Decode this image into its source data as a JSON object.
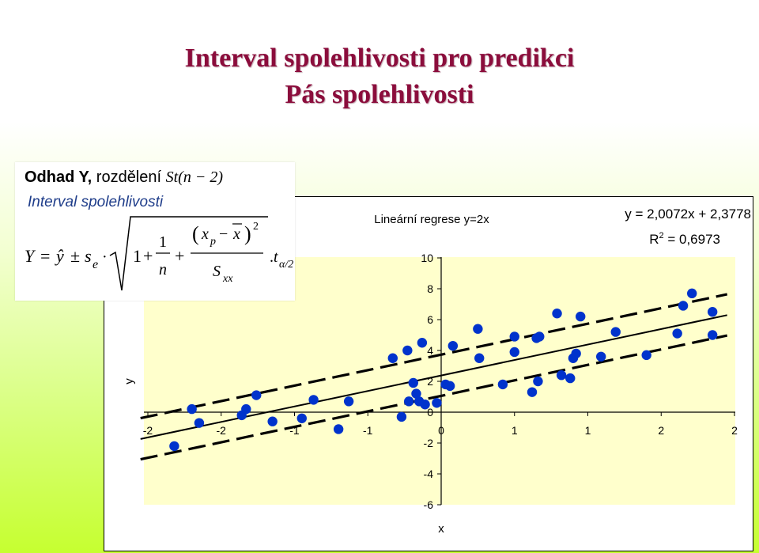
{
  "slide": {
    "title_line1": "Interval spolehlivosti pro predikci",
    "title_line2": "Pás spolehlivosti"
  },
  "formula_box": {
    "heading_bold": "Odhad Y,",
    "heading_rest": "rozdělení",
    "distribution": "St(n − 2)",
    "subheading": "Interval spolehlivosti",
    "formula": "Y = ŷ ± s_e · √(1 + 1/n + (x_p − x̄)² / S_xx) · t_α/2"
  },
  "chart_data": {
    "type": "scatter",
    "title": "Lineární regrese y=2x",
    "xlabel": "x",
    "ylabel": "y",
    "equation": "y = 2,0072x + 2,3778",
    "r2_label": "R",
    "r2_sup": "2",
    "r2_value": " = 0,6973",
    "xlim": [
      -2,
      2
    ],
    "ylim": [
      -6,
      10
    ],
    "x_tick_labels": [
      "-2",
      "-2",
      "-1",
      "-1",
      "0",
      "1",
      "1",
      "2",
      "2"
    ],
    "x_tick_values": [
      -2,
      -1.5,
      -1,
      -0.5,
      0,
      0.5,
      1,
      1.5,
      2
    ],
    "y_ticks": [
      -6,
      -4,
      -2,
      0,
      2,
      4,
      6,
      8,
      10
    ],
    "grid": false,
    "colors": {
      "plot_bg": "#ffffcc",
      "points": "#0033cc",
      "lines": "#000000"
    },
    "regression": {
      "slope": 2.0072,
      "intercept": 2.3778
    },
    "band": {
      "half_width_low": 1.32,
      "half_width_high": 1.35
    },
    "points": [
      {
        "x": -1.82,
        "y": -2.2
      },
      {
        "x": -1.7,
        "y": 0.2
      },
      {
        "x": -1.65,
        "y": -0.7
      },
      {
        "x": -1.36,
        "y": -0.2
      },
      {
        "x": -1.33,
        "y": 0.2
      },
      {
        "x": -1.26,
        "y": 1.1
      },
      {
        "x": -1.15,
        "y": -0.6
      },
      {
        "x": -0.95,
        "y": -0.4
      },
      {
        "x": -0.87,
        "y": 0.8
      },
      {
        "x": -0.7,
        "y": -1.1
      },
      {
        "x": -0.63,
        "y": 0.7
      },
      {
        "x": -0.33,
        "y": 3.5
      },
      {
        "x": -0.27,
        "y": -0.3
      },
      {
        "x": -0.23,
        "y": 4.0
      },
      {
        "x": -0.22,
        "y": 0.7
      },
      {
        "x": -0.19,
        "y": 1.9
      },
      {
        "x": -0.17,
        "y": 1.2
      },
      {
        "x": -0.15,
        "y": 0.7
      },
      {
        "x": -0.13,
        "y": 4.5
      },
      {
        "x": -0.11,
        "y": 0.5
      },
      {
        "x": -0.03,
        "y": 0.6
      },
      {
        "x": 0.03,
        "y": 1.8
      },
      {
        "x": 0.06,
        "y": 1.7
      },
      {
        "x": 0.08,
        "y": 4.3
      },
      {
        "x": 0.25,
        "y": 5.4
      },
      {
        "x": 0.26,
        "y": 3.5
      },
      {
        "x": 0.42,
        "y": 1.8
      },
      {
        "x": 0.5,
        "y": 4.9
      },
      {
        "x": 0.5,
        "y": 3.9
      },
      {
        "x": 0.62,
        "y": 1.3
      },
      {
        "x": 0.65,
        "y": 4.8
      },
      {
        "x": 0.66,
        "y": 2.0
      },
      {
        "x": 0.67,
        "y": 4.9
      },
      {
        "x": 0.79,
        "y": 6.4
      },
      {
        "x": 0.82,
        "y": 2.4
      },
      {
        "x": 0.88,
        "y": 2.2
      },
      {
        "x": 0.9,
        "y": 3.5
      },
      {
        "x": 0.92,
        "y": 3.8
      },
      {
        "x": 0.95,
        "y": 6.2
      },
      {
        "x": 1.09,
        "y": 3.6
      },
      {
        "x": 1.19,
        "y": 5.2
      },
      {
        "x": 1.4,
        "y": 3.7
      },
      {
        "x": 1.61,
        "y": 5.1
      },
      {
        "x": 1.65,
        "y": 6.9
      },
      {
        "x": 1.71,
        "y": 7.7
      },
      {
        "x": 1.85,
        "y": 6.5
      },
      {
        "x": 1.85,
        "y": 5.0
      }
    ]
  }
}
